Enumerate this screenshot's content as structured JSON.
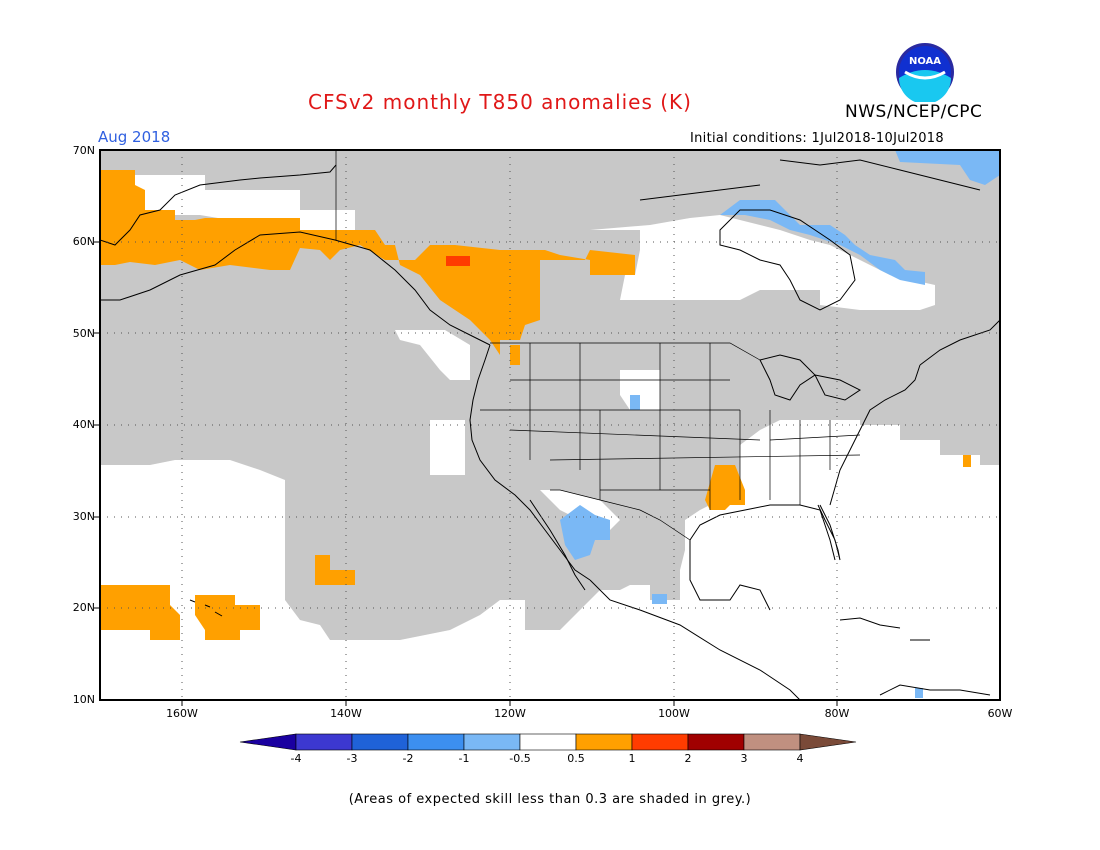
{
  "title": "CFSv2 monthly T850 anomalies (K)",
  "organization": "NWS/NCEP/CPC",
  "period": "Aug 2018",
  "initial_conditions": "Initial conditions: 1Jul2018-10Jul2018",
  "logo_text": "NOAA",
  "lat_labels": [
    "70N",
    "60N",
    "50N",
    "40N",
    "30N",
    "20N",
    "10N"
  ],
  "lon_labels": [
    "160W",
    "140W",
    "120W",
    "100W",
    "80W",
    "60W"
  ],
  "colorbar": {
    "labels": [
      "-4",
      "-3",
      "-2",
      "-1",
      "-0.5",
      "0.5",
      "1",
      "2",
      "3",
      "4"
    ],
    "colors": [
      "#1a00a0",
      "#3c38d0",
      "#1f62d8",
      "#3c8ff0",
      "#7ab8f5",
      "#ffffff",
      "#ffa000",
      "#ff3c00",
      "#a00000",
      "#c09080",
      "#7a4a38"
    ]
  },
  "footnote": "(Areas of expected skill less than 0.3 are shaded in grey.)",
  "colors": {
    "grey_low_skill": "#c8c8c8",
    "orange_anom": "#ffa000",
    "red_anom": "#ff3c00",
    "light_blue_anom": "#7ab8f5",
    "title_red": "#e01818",
    "period_blue": "#3060e0"
  }
}
